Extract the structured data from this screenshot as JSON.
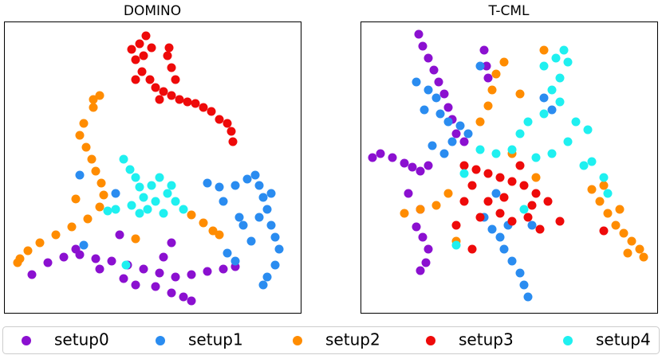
{
  "chart_data": [
    {
      "type": "scatter",
      "title": "DOMINO",
      "xlim": [
        0,
        372
      ],
      "ylim": [
        0,
        366
      ],
      "series": [
        {
          "name": "setup0",
          "color": "#8b10d0",
          "x": [
            35,
            55,
            75,
            95,
            115,
            135,
            155,
            175,
            195,
            215,
            235,
            255,
            275,
            290,
            150,
            165,
            190,
            210,
            225,
            235,
            200,
            210,
            145,
            90,
            120
          ],
          "y": [
            48,
            63,
            70,
            73,
            68,
            65,
            60,
            55,
            50,
            45,
            48,
            52,
            55,
            58,
            43,
            35,
            33,
            25,
            20,
            15,
            70,
            88,
            98,
            80,
            55
          ]
        },
        {
          "name": "setup1",
          "color": "#2a8cf0",
          "x": [
            255,
            270,
            290,
            305,
            315,
            320,
            325,
            330,
            335,
            340,
            345,
            340,
            330,
            325,
            310,
            300,
            290,
            280,
            320,
            335,
            275,
            295,
            95,
            140,
            100
          ],
          "y": [
            163,
            158,
            160,
            168,
            173,
            160,
            145,
            130,
            110,
            95,
            80,
            60,
            45,
            35,
            90,
            110,
            65,
            75,
            120,
            150,
            140,
            120,
            173,
            150,
            85
          ]
        },
        {
          "name": "setup2",
          "color": "#ff8c00",
          "x": [
            120,
            112,
            100,
            95,
            103,
            110,
            115,
            122,
            125,
            120,
            105,
            85,
            65,
            45,
            30,
            20,
            17,
            235,
            250,
            262,
            270,
            165,
            90,
            112
          ],
          "y": [
            273,
            258,
            238,
            223,
            208,
            193,
            178,
            163,
            148,
            133,
            118,
            108,
            98,
            88,
            78,
            68,
            63,
            123,
            113,
            103,
            98,
            93,
            143,
            268
          ]
        },
        {
          "name": "setup3",
          "color": "#ee0a0a",
          "x": [
            178,
            170,
            160,
            165,
            175,
            185,
            173,
            183,
            165,
            190,
            200,
            210,
            220,
            230,
            240,
            250,
            260,
            270,
            280,
            285,
            287,
            205,
            210,
            215,
            195,
            207
          ],
          "y": [
            348,
            338,
            331,
            318,
            323,
            333,
            303,
            293,
            293,
            283,
            278,
            273,
            268,
            265,
            263,
            258,
            253,
            243,
            238,
            228,
            215,
            323,
            308,
            293,
            268,
            333
          ]
        },
        {
          "name": "setup4",
          "color": "#1ff0f0",
          "x": [
            150,
            158,
            165,
            170,
            175,
            185,
            195,
            205,
            215,
            225,
            200,
            180,
            160,
            140,
            130,
            210,
            190,
            170,
            153
          ],
          "y": [
            193,
            180,
            170,
            158,
            145,
            160,
            170,
            150,
            140,
            130,
            125,
            130,
            135,
            130,
            128,
            160,
            140,
            125,
            60
          ]
        }
      ]
    },
    {
      "type": "scatter",
      "title": "T-CML",
      "xlim": [
        0,
        372
      ],
      "ylim": [
        0,
        366
      ],
      "series": [
        {
          "name": "setup0",
          "color": "#8b10d0",
          "x": [
            73,
            78,
            85,
            92,
            98,
            105,
            110,
            115,
            25,
            40,
            55,
            15,
            65,
            75,
            85,
            70,
            78,
            85,
            82,
            75,
            155,
            158,
            160,
            120,
            130,
            60,
            75
          ],
          "y": [
            350,
            335,
            320,
            305,
            290,
            275,
            258,
            243,
            200,
            195,
            188,
            195,
            183,
            178,
            185,
            108,
            95,
            80,
            63,
            53,
            330,
            310,
            295,
            225,
            215,
            150,
            130
          ]
        },
        {
          "name": "setup1",
          "color": "#2a8cf0",
          "x": [
            70,
            85,
            95,
            80,
            100,
            110,
            125,
            135,
            115,
            105,
            90,
            155,
            165,
            175,
            180,
            190,
            200,
            205,
            210,
            185,
            170,
            230,
            240,
            215,
            150
          ],
          "y": [
            290,
            280,
            270,
            255,
            250,
            240,
            235,
            225,
            215,
            200,
            210,
            120,
            105,
            95,
            80,
            65,
            50,
            35,
            20,
            110,
            150,
            270,
            255,
            110,
            310
          ]
        },
        {
          "name": "setup2",
          "color": "#ff8c00",
          "x": [
            290,
            300,
            310,
            320,
            330,
            340,
            350,
            355,
            335,
            325,
            305,
            55,
            75,
            95,
            110,
            150,
            160,
            165,
            170,
            180,
            200,
            190,
            220,
            120,
            230
          ],
          "y": [
            155,
            140,
            125,
            110,
            100,
            90,
            80,
            70,
            75,
            130,
            160,
            125,
            130,
            135,
            150,
            240,
            260,
            280,
            300,
            315,
            275,
            200,
            170,
            90,
            330
          ]
        },
        {
          "name": "setup3",
          "color": "#ee0a0a",
          "x": [
            130,
            145,
            160,
            175,
            190,
            205,
            220,
            235,
            140,
            160,
            175,
            190,
            210,
            225,
            130,
            150,
            120,
            200,
            250,
            305,
            140,
            180,
            215
          ],
          "y": [
            185,
            180,
            175,
            170,
            165,
            160,
            150,
            140,
            160,
            140,
            125,
            115,
            120,
            105,
            140,
            120,
            110,
            185,
            115,
            103,
            80,
            145,
            135
          ]
        },
        {
          "name": "setup4",
          "color": "#1ff0f0",
          "x": [
            230,
            245,
            255,
            260,
            250,
            240,
            250,
            230,
            210,
            200,
            270,
            285,
            260,
            240,
            220,
            290,
            305,
            280,
            150,
            170,
            130,
            190,
            205,
            120,
            310
          ],
          "y": [
            310,
            320,
            330,
            315,
            295,
            280,
            265,
            250,
            240,
            225,
            240,
            230,
            215,
            200,
            195,
            190,
            170,
            185,
            205,
            200,
            175,
            205,
            130,
            85,
            150
          ]
        }
      ]
    }
  ]
}
